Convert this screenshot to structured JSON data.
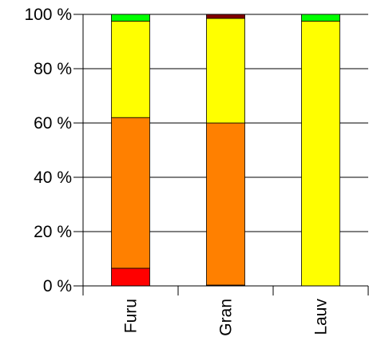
{
  "chart_data": {
    "type": "bar",
    "stacked": true,
    "categories": [
      "Furu",
      "Gran",
      "Lauv"
    ],
    "series": [
      {
        "color": "#ff0000",
        "values": [
          6.5,
          0.3,
          0
        ]
      },
      {
        "color": "#ff8000",
        "values": [
          55.5,
          59.7,
          0
        ]
      },
      {
        "color": "#ffff00",
        "values": [
          35.5,
          38.5,
          97.5
        ]
      },
      {
        "color": "#800000",
        "values": [
          0,
          1.5,
          0
        ]
      },
      {
        "color": "#00ff00",
        "values": [
          2.5,
          0,
          2.5
        ]
      }
    ],
    "y_ticks": [
      "0 %",
      "20 %",
      "40 %",
      "60 %",
      "80 %",
      "100 %"
    ],
    "ylim": [
      0,
      100
    ],
    "grid": true,
    "legend": "none"
  }
}
